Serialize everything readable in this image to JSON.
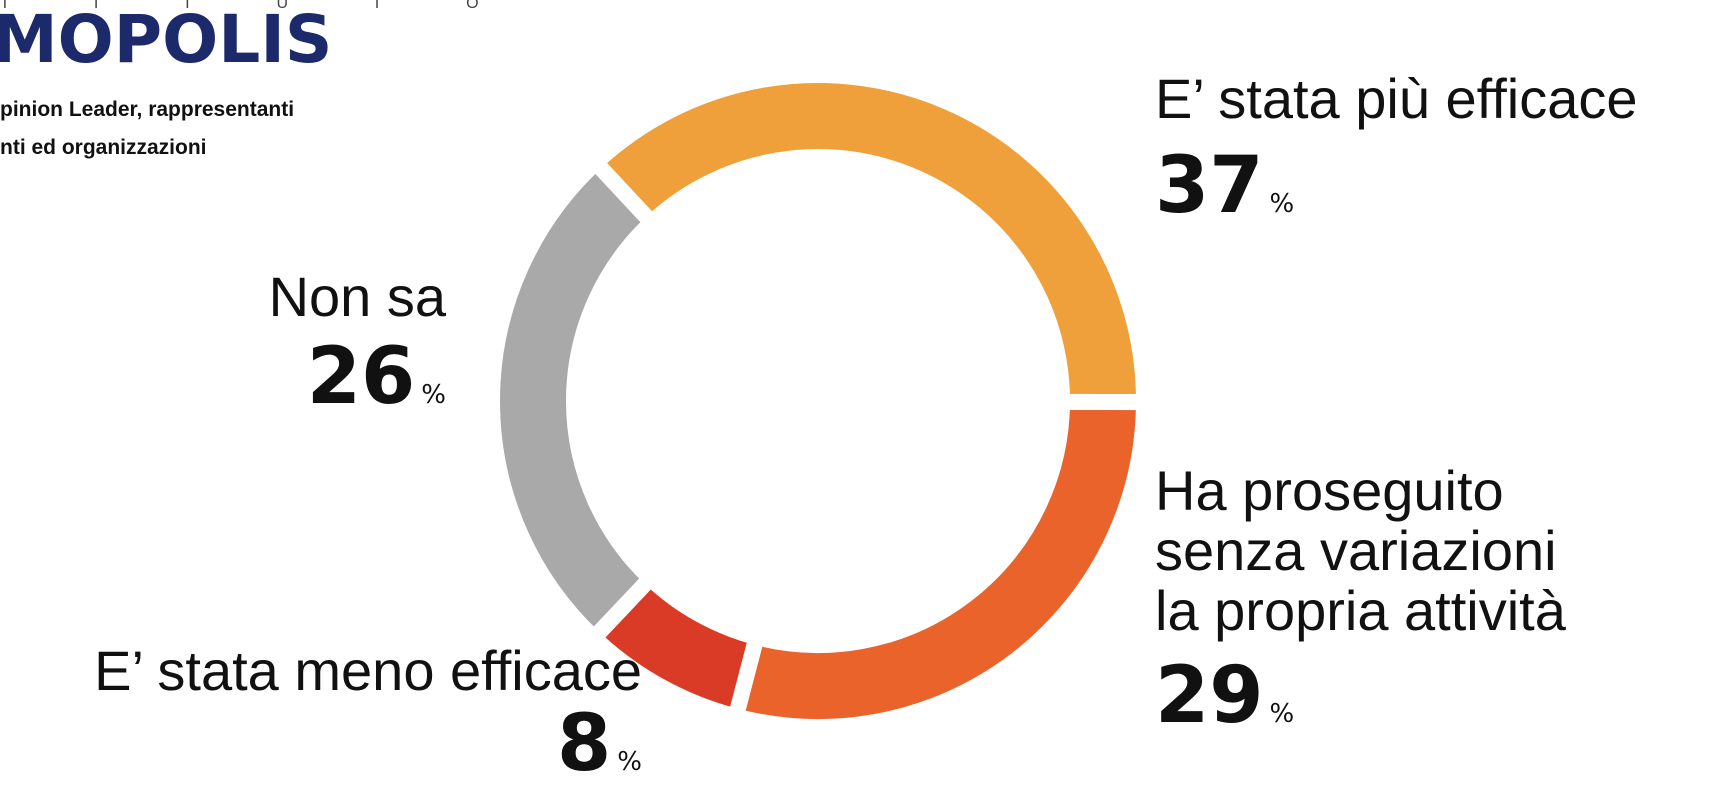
{
  "chart_data": {
    "type": "donut",
    "logo_letters": "T I T U T O",
    "logo": "MOPOLIS",
    "subtitle_lines": [
      "pinion Leader, rappresentanti",
      "nti ed organizzazioni"
    ],
    "categories": [
      [
        "E’ stata più efficace"
      ],
      [
        "Ha proseguito",
        "senza variazioni",
        "la propria attività"
      ],
      [
        "E’ stata meno efficace"
      ],
      [
        "Non sa"
      ]
    ],
    "values": [
      37,
      29,
      8,
      26
    ],
    "unit": "%",
    "colors": [
      "#f0a03a",
      "#ea632b",
      "#d93b26",
      "#a9a9a9"
    ]
  }
}
